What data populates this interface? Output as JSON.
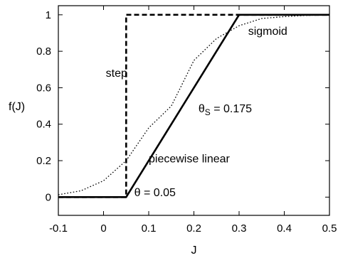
{
  "chart_data": {
    "type": "line",
    "title": "",
    "xlabel": "J",
    "ylabel": "f(J)",
    "xlim": [
      -0.1,
      0.5
    ],
    "ylim": [
      -0.1,
      1.05
    ],
    "xticks": [
      -0.1,
      0,
      0.1,
      0.2,
      0.3,
      0.4,
      0.5
    ],
    "xtick_labels": [
      "-0.1",
      "0",
      "0.1",
      "0.2",
      "0.3",
      "0.4",
      "0.5"
    ],
    "yticks": [
      0,
      0.2,
      0.4,
      0.6,
      0.8,
      1
    ],
    "ytick_labels": [
      "0",
      "0.2",
      "0.4",
      "0.6",
      "0.8",
      "1"
    ],
    "grid": false,
    "legend": "none",
    "theta": 0.05,
    "theta_s": 0.175,
    "series": [
      {
        "name": "step",
        "style": "dashed",
        "color": "#000000",
        "x": [
          -0.1,
          0.05,
          0.05,
          0.5
        ],
        "y": [
          0,
          0,
          1,
          1
        ]
      },
      {
        "name": "piecewise linear",
        "style": "solid",
        "color": "#000000",
        "x": [
          -0.1,
          0.05,
          0.3,
          0.5
        ],
        "y": [
          0,
          0,
          1,
          1
        ]
      },
      {
        "name": "sigmoid",
        "style": "dotted",
        "color": "#000000",
        "x": [
          -0.1,
          -0.05,
          0.0,
          0.05,
          0.1,
          0.15,
          0.2,
          0.25,
          0.3,
          0.35,
          0.4,
          0.45,
          0.5
        ],
        "y": [
          0.013,
          0.035,
          0.09,
          0.2,
          0.38,
          0.5,
          0.75,
          0.87,
          0.94,
          0.98,
          0.99,
          0.997,
          0.999
        ]
      }
    ],
    "annotations": {
      "step": {
        "text": "step",
        "x": 0.005,
        "y": 0.66
      },
      "sigmoid": {
        "text": "sigmoid",
        "x": 0.32,
        "y": 0.89
      },
      "theta_s": {
        "prefix": "θ",
        "sub": "S",
        "suffix": " = 0.175",
        "x": 0.21,
        "y": 0.465
      },
      "piecewise": {
        "text": "piecewise linear",
        "x": 0.1,
        "y": 0.19
      },
      "theta": {
        "text": "θ = 0.05",
        "x": 0.068,
        "y": 0.005
      }
    }
  }
}
